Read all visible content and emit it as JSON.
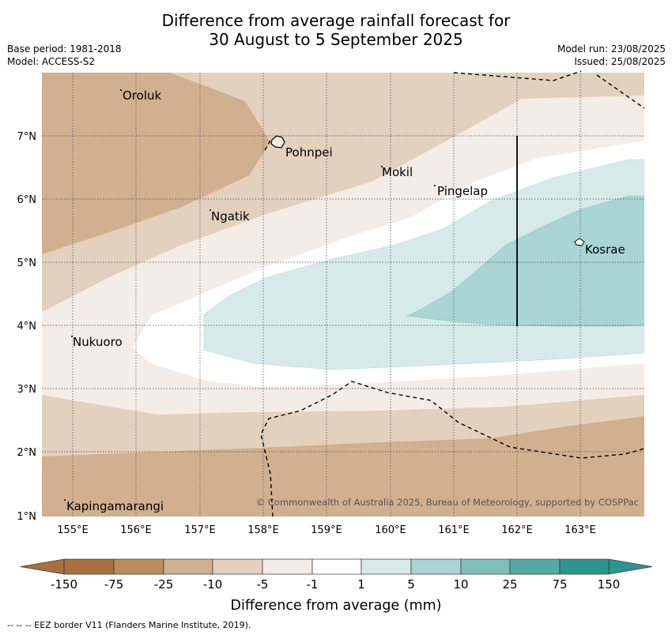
{
  "header": {
    "title_line1": "Difference from average rainfall forecast for",
    "title_line2": "30 August to 5 September 2025",
    "base_period": "Base period: 1981-2018",
    "model": "Model: ACCESS-S2",
    "model_run": "Model run: 23/08/2025",
    "issued": "Issued: 25/08/2025"
  },
  "map": {
    "lon_ticks": [
      "155°E",
      "156°E",
      "157°E",
      "158°E",
      "159°E",
      "160°E",
      "161°E",
      "162°E",
      "163°E"
    ],
    "lat_ticks": [
      "7°N",
      "6°N",
      "5°N",
      "4°N",
      "3°N",
      "2°N",
      "1°N"
    ],
    "places": [
      {
        "name": "Oroluk"
      },
      {
        "name": "Pohnpei"
      },
      {
        "name": "Mokil"
      },
      {
        "name": "Pingelap"
      },
      {
        "name": "Ngatik"
      },
      {
        "name": "Kosrae"
      },
      {
        "name": "Nukuoro"
      },
      {
        "name": "Kapingamarangi"
      }
    ],
    "copyright": "© Commonwealth of Australia 2025, Bureau of Meteorology, supported by COSPPac"
  },
  "colorbar": {
    "labels": [
      "-150",
      "-75",
      "-25",
      "-10",
      "-5",
      "-1",
      "1",
      "5",
      "10",
      "25",
      "75",
      "150"
    ],
    "colors": [
      "#a8703c",
      "#bb8d5e",
      "#d1b08f",
      "#e3d0bd",
      "#f4ece6",
      "#ffffff",
      "#d6eae9",
      "#a9d5d4",
      "#7fbfbc",
      "#55aaa6",
      "#2d958f"
    ],
    "title": "Difference from average (mm)"
  },
  "footer": "--  --  -- EEZ border V11 (Flanders Marine Institute, 2019)."
}
